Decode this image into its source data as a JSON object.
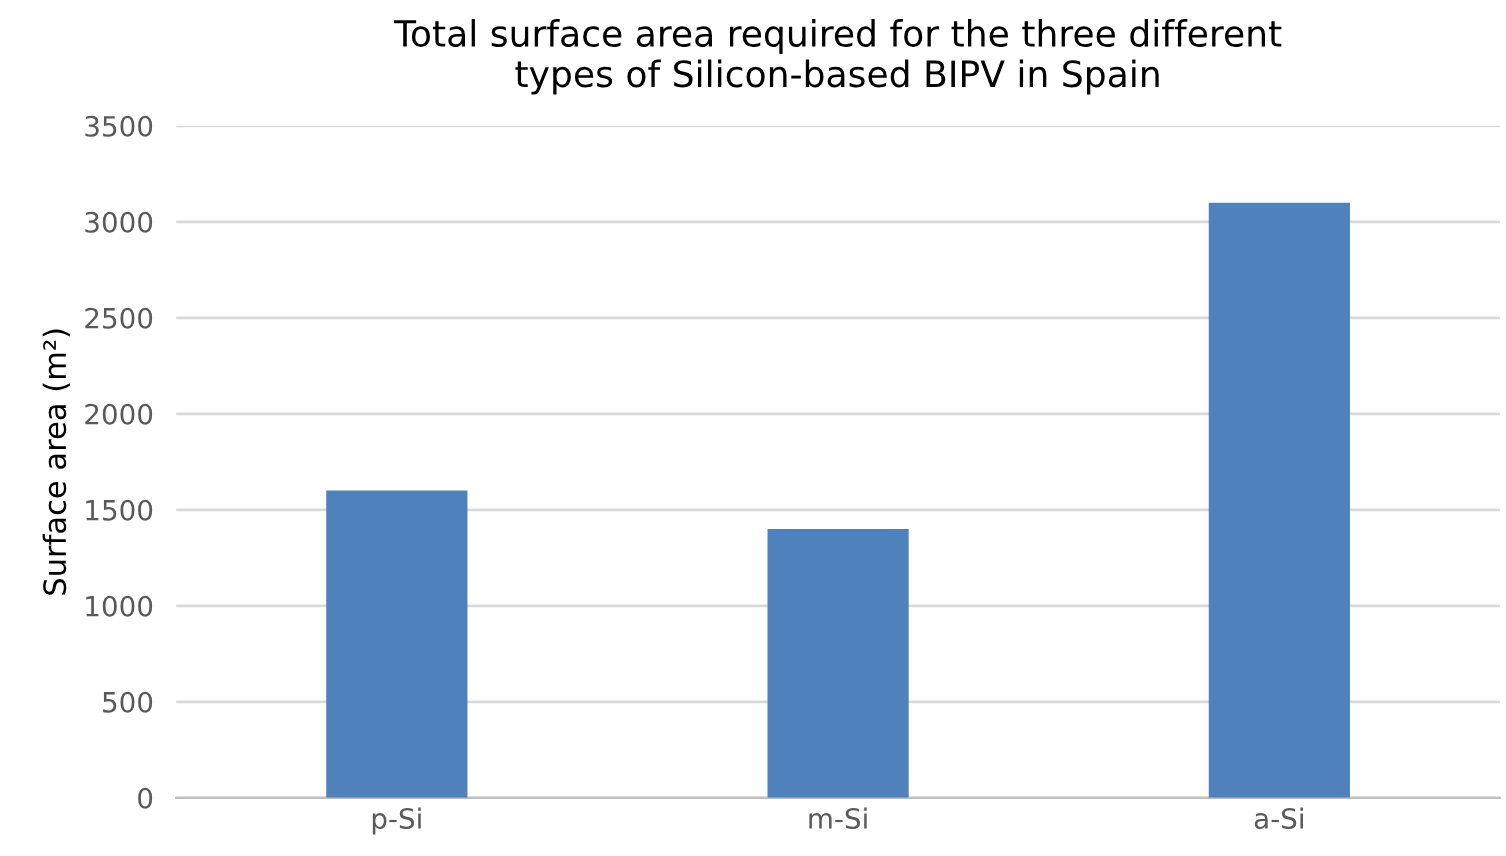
{
  "chart_data": {
    "type": "bar",
    "title": "Total surface area required for the three different\ntypes of Silicon-based BIPV in Spain",
    "ylabel": "Surface area (m²)",
    "categories": [
      "p-Si",
      "m-Si",
      "a-Si"
    ],
    "values": [
      1600,
      1400,
      3100
    ],
    "color": "#4f81bd",
    "ylim": [
      0,
      3500
    ],
    "yticks": [
      0,
      500,
      1000,
      1500,
      2000,
      2500,
      3000,
      3500
    ],
    "grid": "y",
    "legend": false
  }
}
